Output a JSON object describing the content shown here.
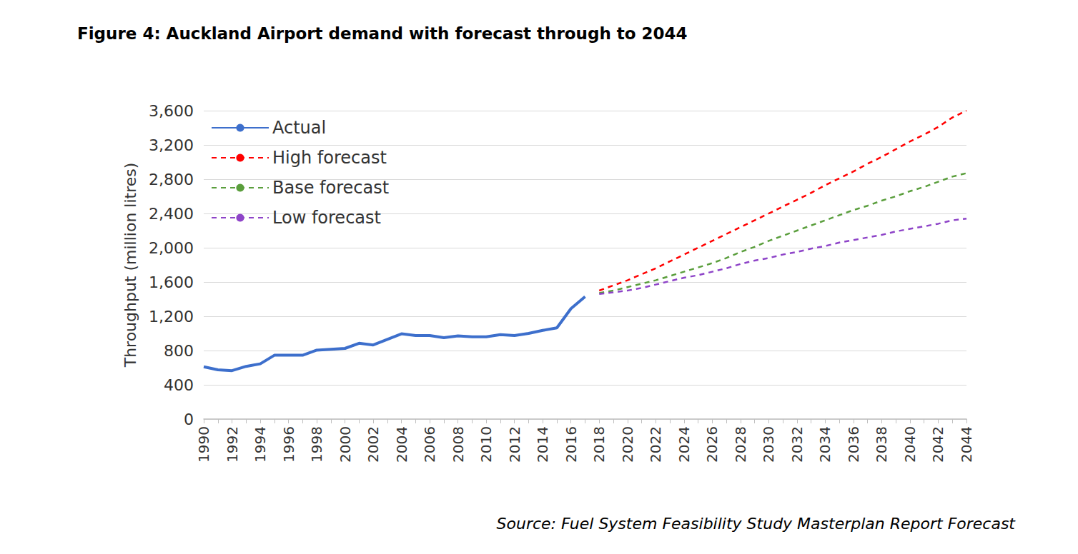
{
  "chart_data": {
    "type": "line",
    "title": "Figure 4: Auckland Airport demand with forecast through to 2044",
    "y_label": "Throughput (million litres)",
    "annotation": "Source: Fuel System Feasibility Study Masterplan Report Forecast",
    "categories": [
      "1990",
      null,
      "1992",
      null,
      "1994",
      null,
      "1996",
      null,
      "1998",
      null,
      "2000",
      null,
      "2002",
      null,
      "2004",
      null,
      "2006",
      null,
      "2008",
      null,
      "2010",
      null,
      "2012",
      null,
      "2014",
      null,
      "2016",
      null,
      "2018",
      null,
      "2020",
      null,
      "2022",
      null,
      "2024",
      null,
      "2026",
      null,
      "2028",
      null,
      "2030",
      null,
      "2032",
      null,
      "2034",
      null,
      "2036",
      null,
      "2038",
      null,
      "2040",
      null,
      "2042",
      null,
      "2044"
    ],
    "series": [
      {
        "name": "Actual",
        "color": "#3d6fcc",
        "line_style": "solid",
        "values": [
          610,
          575,
          565,
          615,
          645,
          745,
          745,
          745,
          805,
          815,
          825,
          885,
          865,
          930,
          995,
          975,
          975,
          950,
          970,
          960,
          960,
          985,
          975,
          1000,
          1035,
          1065,
          1290,
          1430,
          null,
          null,
          null,
          null,
          null,
          null,
          null,
          null,
          null,
          null,
          null,
          null,
          null,
          null,
          null,
          null,
          null,
          null,
          null,
          null,
          null,
          null,
          null,
          null,
          null,
          null,
          null
        ]
      },
      {
        "name": "High forecast",
        "color": "#ff0000",
        "line_style": "dashed",
        "values": [
          null,
          null,
          null,
          null,
          null,
          null,
          null,
          null,
          null,
          null,
          null,
          null,
          null,
          null,
          null,
          null,
          null,
          null,
          null,
          null,
          null,
          null,
          null,
          null,
          null,
          null,
          null,
          null,
          1500,
          1560,
          1620,
          1690,
          1760,
          1840,
          1920,
          2000,
          2080,
          2160,
          2240,
          2320,
          2400,
          2480,
          2560,
          2640,
          2730,
          2810,
          2890,
          2980,
          3060,
          3150,
          3240,
          3320,
          3410,
          3520,
          3600
        ]
      },
      {
        "name": "Base forecast",
        "color": "#5a9e3c",
        "line_style": "dashed",
        "values": [
          null,
          null,
          null,
          null,
          null,
          null,
          null,
          null,
          null,
          null,
          null,
          null,
          null,
          null,
          null,
          null,
          null,
          null,
          null,
          null,
          null,
          null,
          null,
          null,
          null,
          null,
          null,
          null,
          1470,
          1500,
          1540,
          1580,
          1620,
          1670,
          1720,
          1770,
          1820,
          1880,
          1950,
          2010,
          2080,
          2140,
          2200,
          2260,
          2320,
          2380,
          2440,
          2490,
          2550,
          2600,
          2660,
          2710,
          2770,
          2830,
          2870
        ]
      },
      {
        "name": "Low forecast",
        "color": "#8e44c8",
        "line_style": "dashed",
        "values": [
          null,
          null,
          null,
          null,
          null,
          null,
          null,
          null,
          null,
          null,
          null,
          null,
          null,
          null,
          null,
          null,
          null,
          null,
          null,
          null,
          null,
          null,
          null,
          null,
          null,
          null,
          null,
          null,
          1460,
          1480,
          1500,
          1530,
          1570,
          1610,
          1650,
          1680,
          1720,
          1760,
          1810,
          1850,
          1880,
          1920,
          1950,
          1990,
          2020,
          2060,
          2090,
          2120,
          2150,
          2190,
          2220,
          2250,
          2280,
          2320,
          2340
        ]
      }
    ],
    "ylim": [
      0,
      3600
    ],
    "yticks": [
      0,
      400,
      800,
      {
        "value": 1200,
        "label": "1,200"
      },
      {
        "value": 1600,
        "label": "1,600"
      },
      {
        "value": 2000,
        "label": "2,000"
      },
      {
        "value": 2400,
        "label": "2,400"
      },
      {
        "value": 2800,
        "label": "2,800"
      },
      {
        "value": 3200,
        "label": "3,200"
      },
      {
        "value": 3600,
        "label": "3,600"
      }
    ],
    "grid": true,
    "legend": "top-left"
  }
}
